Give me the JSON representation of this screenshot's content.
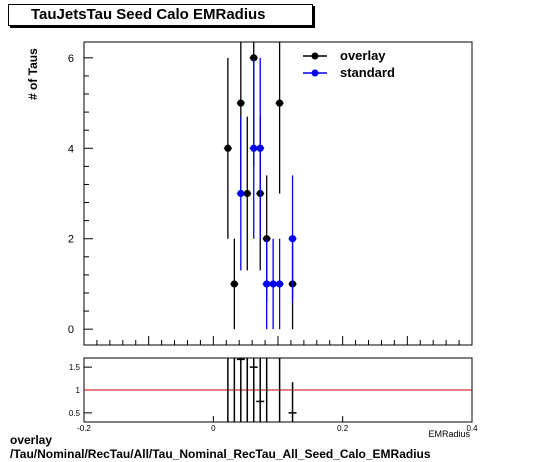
{
  "title": "TauJetsTau Seed Calo EMRadius",
  "caption": {
    "line1": "overlay",
    "line2": "/Tau/Nominal/RecTau/All/Tau_Nominal_RecTau_All_Seed_Calo_EMRadius"
  },
  "chart_data": [
    {
      "type": "scatter",
      "ylabel": "# of Taus",
      "xlim": [
        -0.2,
        0.4
      ],
      "ylim": [
        -0.35,
        6.35
      ],
      "yticks": [
        0,
        2,
        4,
        6
      ],
      "grid": false,
      "legend": "top-right",
      "series": [
        {
          "name": "overlay",
          "color": "#000000",
          "points": [
            {
              "x": 0.0225,
              "y": 4,
              "ylo": 2.0,
              "yhi": 6.0
            },
            {
              "x": 0.0325,
              "y": 1,
              "ylo": 0.0,
              "yhi": 2.0
            },
            {
              "x": 0.0425,
              "y": 5,
              "ylo": 3.0,
              "yhi": 6.35
            },
            {
              "x": 0.0525,
              "y": 3,
              "ylo": 1.3,
              "yhi": 4.7
            },
            {
              "x": 0.0625,
              "y": 6,
              "ylo": 3.6,
              "yhi": 6.35
            },
            {
              "x": 0.0725,
              "y": 3,
              "ylo": 1.3,
              "yhi": 4.7
            },
            {
              "x": 0.0825,
              "y": 2,
              "ylo": 0.6,
              "yhi": 3.4
            },
            {
              "x": 0.1025,
              "y": 5,
              "ylo": 3.0,
              "yhi": 6.35
            },
            {
              "x": 0.1225,
              "y": 1,
              "ylo": 0.0,
              "yhi": 2.0
            }
          ]
        },
        {
          "name": "standard",
          "color": "#0000ee",
          "points": [
            {
              "x": 0.0425,
              "y": 3,
              "ylo": 1.3,
              "yhi": 4.7
            },
            {
              "x": 0.0625,
              "y": 4,
              "ylo": 2.0,
              "yhi": 6.0
            },
            {
              "x": 0.0725,
              "y": 4,
              "ylo": 2.0,
              "yhi": 6.0
            },
            {
              "x": 0.0825,
              "y": 1,
              "ylo": 0.0,
              "yhi": 2.0
            },
            {
              "x": 0.0925,
              "y": 1,
              "ylo": 0.0,
              "yhi": 2.0
            },
            {
              "x": 0.1025,
              "y": 1,
              "ylo": 0.0,
              "yhi": 2.0
            },
            {
              "x": 0.1225,
              "y": 2,
              "ylo": 0.6,
              "yhi": 3.4
            }
          ]
        }
      ]
    },
    {
      "type": "scatter",
      "xlabel": "EMRadius",
      "xlim": [
        -0.2,
        0.4
      ],
      "ylim": [
        0.3,
        1.7
      ],
      "xticks": [
        -0.2,
        0,
        0.2,
        0.4
      ],
      "yticks": [
        0.5,
        1,
        1.5
      ],
      "ratio_line": {
        "y": 1,
        "color": "#cc0000"
      },
      "series": [
        {
          "name": "ratio",
          "color": "#000000",
          "points": [
            {
              "x": 0.0225,
              "y": null,
              "ylo": 0.3,
              "yhi": 1.7
            },
            {
              "x": 0.0325,
              "y": null,
              "ylo": 0.3,
              "yhi": 1.7
            },
            {
              "x": 0.0425,
              "y": 1.67,
              "ylo": 0.3,
              "yhi": 1.7
            },
            {
              "x": 0.0525,
              "y": null,
              "ylo": 0.3,
              "yhi": 1.7
            },
            {
              "x": 0.0625,
              "y": 1.5,
              "ylo": 0.3,
              "yhi": 1.7
            },
            {
              "x": 0.0725,
              "y": 0.75,
              "ylo": 0.3,
              "yhi": 1.7
            },
            {
              "x": 0.0825,
              "y": null,
              "ylo": 0.3,
              "yhi": 1.7
            },
            {
              "x": 0.1025,
              "y": null,
              "ylo": 0.3,
              "yhi": 1.7
            },
            {
              "x": 0.1225,
              "y": 0.5,
              "ylo": 0.3,
              "yhi": 1.17
            }
          ]
        }
      ]
    }
  ]
}
